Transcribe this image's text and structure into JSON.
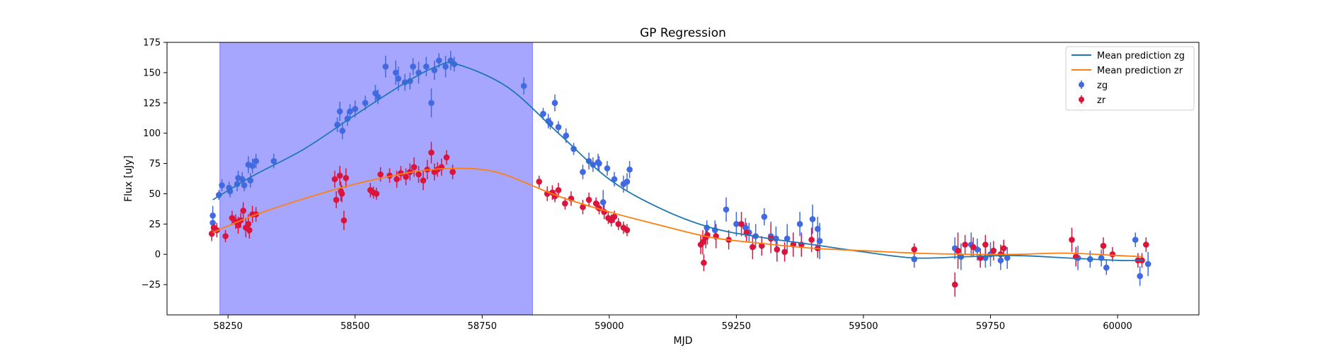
{
  "chart_data": {
    "type": "scatter",
    "title": "GP Regression",
    "xlabel": "MJD",
    "ylabel": "Flux [uJy]",
    "xlim": [
      58130,
      60160
    ],
    "ylim": [
      -50,
      175
    ],
    "xticks": [
      58250,
      58500,
      58750,
      59000,
      59250,
      59500,
      59750,
      60000
    ],
    "yticks": [
      -25,
      0,
      25,
      50,
      75,
      100,
      125,
      150,
      175
    ],
    "grid": false,
    "legend_position": "top-right",
    "shaded_region": {
      "x": [
        58234,
        58849
      ],
      "color": "#a6a6ff"
    },
    "colors": {
      "mean_zg": "#1f77b4",
      "mean_zr": "#ff7f0e",
      "zg": "#4169e1",
      "zr": "#dc143c"
    },
    "legend": [
      "Mean prediction zg",
      "Mean prediction zr",
      "zg",
      "zr"
    ],
    "series": [
      {
        "name": "Mean prediction zg",
        "kind": "line",
        "x": [
          58220,
          58300,
          58400,
          58500,
          58600,
          58660,
          58700,
          58800,
          58900,
          59000,
          59100,
          59200,
          59300,
          59400,
          59500,
          59600,
          59700,
          59800,
          59900,
          60000,
          60050
        ],
        "y": [
          45,
          65,
          87,
          115,
          142,
          155,
          157,
          138,
          100,
          62,
          38,
          22,
          14,
          8,
          2,
          -3,
          -2,
          -1,
          -3,
          -5,
          -5
        ]
      },
      {
        "name": "Mean prediction zr",
        "kind": "line",
        "x": [
          58220,
          58300,
          58400,
          58500,
          58600,
          58650,
          58700,
          58750,
          58800,
          58900,
          59000,
          59100,
          59200,
          59300,
          59400,
          59500,
          59600,
          59700,
          59800,
          59900,
          60000,
          60050
        ],
        "y": [
          18,
          32,
          46,
          58,
          67,
          70,
          71,
          70,
          65,
          48,
          35,
          24,
          14,
          9,
          5,
          3,
          1,
          0,
          0,
          1,
          -1,
          -2
        ]
      },
      {
        "name": "zg",
        "kind": "errorbar",
        "x": [
          58220,
          58220,
          58232,
          58238,
          58252,
          58254,
          58268,
          58270,
          58278,
          58282,
          58290,
          58294,
          58298,
          58305,
          58340,
          58465,
          58470,
          58475,
          58485,
          58490,
          58500,
          58520,
          58540,
          58545,
          58560,
          58580,
          58585,
          58598,
          58608,
          58614,
          58625,
          58640,
          58650,
          58656,
          58665,
          58678,
          58688,
          58695,
          58832,
          58870,
          58880,
          58884,
          58893,
          58900,
          58915,
          58930,
          58948,
          58960,
          58968,
          58978,
          58980,
          58988,
          58996,
          59010,
          59028,
          59035,
          59040,
          59192,
          59208,
          59230,
          59250,
          59268,
          59275,
          59288,
          59305,
          59318,
          59328,
          59350,
          59375,
          59400,
          59410,
          59414,
          59600,
          59680,
          59692,
          59712,
          59724,
          59740,
          59750,
          59770,
          59783,
          59922,
          59946,
          59968,
          59978,
          60035,
          60044,
          60060
        ],
        "y": [
          32,
          26,
          49,
          57,
          55,
          52,
          58,
          63,
          62,
          57,
          74,
          61,
          73,
          77,
          77,
          107,
          118,
          102,
          112,
          118,
          120,
          125,
          133,
          130,
          155,
          150,
          145,
          142,
          143,
          155,
          150,
          155,
          125,
          152,
          160,
          155,
          160,
          157,
          139,
          116,
          110,
          108,
          125,
          105,
          98,
          87,
          68,
          77,
          74,
          76,
          75,
          43,
          71,
          62,
          58,
          60,
          70,
          22,
          20,
          37,
          25,
          22,
          18,
          15,
          31,
          15,
          13,
          13,
          25,
          29,
          21,
          11,
          -4,
          5,
          -2,
          8,
          4,
          -3,
          0,
          -5,
          -3,
          -3,
          -4,
          -3,
          -11,
          12,
          -18,
          -8
        ],
        "err": [
          8,
          6,
          4,
          5,
          5,
          5,
          6,
          6,
          6,
          5,
          7,
          6,
          6,
          6,
          6,
          6,
          8,
          7,
          6,
          6,
          7,
          6,
          7,
          6,
          9,
          10,
          10,
          7,
          7,
          7,
          9,
          8,
          12,
          8,
          6,
          9,
          8,
          6,
          7,
          5,
          6,
          5,
          7,
          5,
          6,
          5,
          6,
          7,
          6,
          7,
          6,
          10,
          6,
          6,
          7,
          7,
          7,
          6,
          8,
          10,
          10,
          8,
          8,
          10,
          7,
          12,
          10,
          12,
          10,
          12,
          10,
          15,
          7,
          9,
          11,
          10,
          9,
          8,
          10,
          8,
          9,
          10,
          7,
          7,
          6,
          6,
          8,
          10
        ]
      },
      {
        "name": "zr",
        "kind": "errorbar",
        "x": [
          58218,
          58222,
          58228,
          58245,
          58258,
          58265,
          58270,
          58275,
          58280,
          58285,
          58290,
          58292,
          58298,
          58305,
          58460,
          58463,
          58470,
          58472,
          58474,
          58478,
          58482,
          58530,
          58536,
          58542,
          58550,
          58568,
          58582,
          58590,
          58600,
          58608,
          58616,
          58625,
          58634,
          58642,
          58650,
          58656,
          58662,
          58670,
          58680,
          58692,
          58862,
          58878,
          58888,
          58893,
          58900,
          58913,
          58925,
          58948,
          58960,
          58974,
          58980,
          58990,
          58998,
          59004,
          59010,
          59018,
          59028,
          59035,
          59180,
          59184,
          59186,
          59190,
          59193,
          59210,
          59235,
          59260,
          59270,
          59282,
          59300,
          59318,
          59330,
          59345,
          59362,
          59378,
          59398,
          59410,
          59600,
          59680,
          59686,
          59700,
          59716,
          59730,
          59740,
          59756,
          59770,
          59776,
          59910,
          59918,
          59972,
          59990,
          60040,
          60048,
          60056
        ],
        "y": [
          17,
          22,
          20,
          15,
          30,
          27,
          24,
          28,
          36,
          22,
          25,
          20,
          33,
          33,
          62,
          45,
          65,
          52,
          50,
          28,
          63,
          53,
          51,
          50,
          66,
          65,
          62,
          67,
          64,
          68,
          72,
          66,
          61,
          70,
          84,
          68,
          70,
          72,
          80,
          68,
          60,
          50,
          51,
          48,
          53,
          42,
          46,
          39,
          45,
          42,
          38,
          35,
          30,
          28,
          31,
          25,
          22,
          20,
          8,
          10,
          -7,
          14,
          16,
          15,
          12,
          25,
          18,
          6,
          7,
          13,
          4,
          2,
          8,
          8,
          12,
          5,
          4,
          -25,
          3,
          8,
          6,
          -3,
          8,
          3,
          0,
          5,
          12,
          -2,
          7,
          0,
          -5,
          -5,
          8
        ],
        "err": [
          6,
          5,
          6,
          5,
          6,
          6,
          7,
          6,
          7,
          8,
          8,
          7,
          7,
          6,
          7,
          7,
          8,
          8,
          7,
          8,
          8,
          6,
          5,
          5,
          6,
          6,
          7,
          6,
          7,
          7,
          8,
          7,
          8,
          8,
          9,
          7,
          6,
          7,
          6,
          6,
          5,
          6,
          6,
          5,
          6,
          5,
          6,
          6,
          6,
          5,
          5,
          6,
          5,
          5,
          5,
          5,
          5,
          5,
          8,
          10,
          7,
          9,
          8,
          10,
          8,
          10,
          8,
          10,
          8,
          12,
          10,
          8,
          10,
          10,
          10,
          8,
          5,
          10,
          15,
          8,
          8,
          8,
          8,
          8,
          8,
          7,
          10,
          8,
          7,
          6,
          6,
          6,
          6
        ]
      }
    ]
  }
}
